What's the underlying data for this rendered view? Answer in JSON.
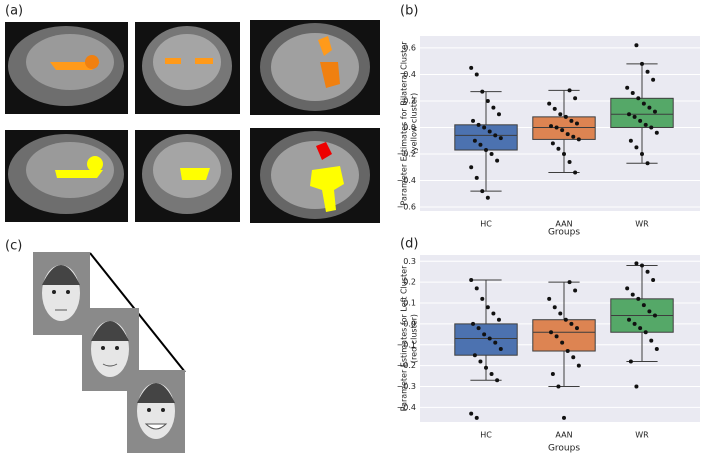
{
  "figure": {
    "panels": [
      "(a)",
      "(b)",
      "(c)",
      "(d)"
    ]
  },
  "chart_data": [
    {
      "type": "box",
      "ylabel": [
        "Parameter Estimates for Bilateral Cluster",
        "(yellow cluster)"
      ],
      "xlabel": "Groups",
      "categories": [
        "HC",
        "AAN",
        "WR"
      ],
      "colors": [
        "#4c72b0",
        "#dd8452",
        "#55a868"
      ],
      "ylim": [
        -0.63,
        0.69
      ],
      "yticks": [
        {
          "value": -0.6,
          "label": "−0.6"
        },
        {
          "value": -0.4,
          "label": "−0.4"
        },
        {
          "value": -0.2,
          "label": "−0.2"
        },
        {
          "value": 0,
          "label": "0.0"
        },
        0.2,
        0.4,
        0.6
      ],
      "grid": true,
      "values": [
        {
          "whislo": -0.48,
          "q1": -0.17,
          "med": -0.06,
          "q3": 0.02,
          "whishi": 0.27,
          "points": [
            0.45,
            0.4,
            0.27,
            0.2,
            0.15,
            0.1,
            0.05,
            0.02,
            0,
            -0.03,
            -0.06,
            -0.08,
            -0.1,
            -0.13,
            -0.17,
            -0.2,
            -0.25,
            -0.3,
            -0.38,
            -0.48,
            -0.53
          ]
        },
        {
          "whislo": -0.34,
          "q1": -0.09,
          "med": 0.0,
          "q3": 0.08,
          "whishi": 0.28,
          "points": [
            0.28,
            0.22,
            0.18,
            0.14,
            0.1,
            0.08,
            0.05,
            0.03,
            0.01,
            0,
            -0.02,
            -0.05,
            -0.07,
            -0.09,
            -0.12,
            -0.16,
            -0.2,
            -0.26,
            -0.34
          ]
        },
        {
          "whislo": -0.27,
          "q1": 0.0,
          "med": 0.1,
          "q3": 0.22,
          "whishi": 0.48,
          "points": [
            0.62,
            0.48,
            0.42,
            0.36,
            0.3,
            0.26,
            0.22,
            0.18,
            0.15,
            0.12,
            0.1,
            0.08,
            0.05,
            0.02,
            0,
            -0.04,
            -0.1,
            -0.15,
            -0.2,
            -0.27
          ]
        }
      ]
    },
    {
      "type": "box",
      "ylabel": [
        "Parameter Estimates for Left Cluster",
        "(red cluster)"
      ],
      "xlabel": "Groups",
      "categories": [
        "HC",
        "AAN",
        "WR"
      ],
      "colors": [
        "#4c72b0",
        "#dd8452",
        "#55a868"
      ],
      "ylim": [
        -0.47,
        0.33
      ],
      "yticks": [
        {
          "value": -0.4,
          "label": "−0.4"
        },
        {
          "value": -0.3,
          "label": "−0.3"
        },
        {
          "value": -0.2,
          "label": "−0.2"
        },
        {
          "value": -0.1,
          "label": "−0.1"
        },
        {
          "value": 0,
          "label": "0.0"
        },
        0.1,
        0.2,
        0.3
      ],
      "grid": true,
      "values": [
        {
          "whislo": -0.27,
          "q1": -0.15,
          "med": -0.07,
          "q3": 0.0,
          "whishi": 0.21,
          "points": [
            0.21,
            0.17,
            0.12,
            0.08,
            0.05,
            0.02,
            0,
            -0.02,
            -0.05,
            -0.07,
            -0.09,
            -0.12,
            -0.15,
            -0.18,
            -0.21,
            -0.24,
            -0.27,
            -0.43,
            -0.45
          ]
        },
        {
          "whislo": -0.3,
          "q1": -0.13,
          "med": -0.04,
          "q3": 0.02,
          "whishi": 0.2,
          "points": [
            0.2,
            0.16,
            0.12,
            0.08,
            0.05,
            0.02,
            0,
            -0.02,
            -0.04,
            -0.06,
            -0.09,
            -0.13,
            -0.16,
            -0.2,
            -0.24,
            -0.3,
            -0.45
          ]
        },
        {
          "whislo": -0.18,
          "q1": -0.04,
          "med": 0.04,
          "q3": 0.12,
          "whishi": 0.28,
          "points": [
            0.29,
            0.28,
            0.25,
            0.21,
            0.17,
            0.14,
            0.12,
            0.09,
            0.06,
            0.04,
            0.02,
            0,
            -0.02,
            -0.04,
            -0.08,
            -0.12,
            -0.18,
            -0.3
          ]
        }
      ]
    }
  ]
}
